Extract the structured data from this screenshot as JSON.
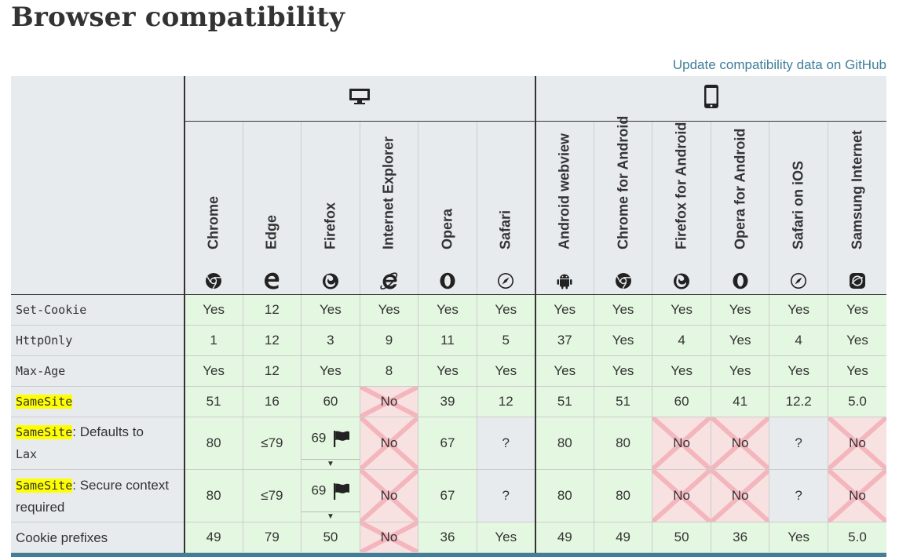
{
  "page": {
    "title": "Browser compatibility",
    "github_link": "Update compatibility data on GitHub"
  },
  "platforms": {
    "desktop_icon": "desktop-icon",
    "mobile_icon": "mobile-icon"
  },
  "browsers": [
    {
      "name": "Chrome",
      "icon": "chrome-icon"
    },
    {
      "name": "Edge",
      "icon": "edge-icon"
    },
    {
      "name": "Firefox",
      "icon": "firefox-icon"
    },
    {
      "name": "Internet Explorer",
      "icon": "ie-icon"
    },
    {
      "name": "Opera",
      "icon": "opera-icon"
    },
    {
      "name": "Safari",
      "icon": "safari-icon"
    },
    {
      "name": "Android webview",
      "icon": "android-icon"
    },
    {
      "name": "Chrome for Android",
      "icon": "chrome-icon"
    },
    {
      "name": "Firefox for Android",
      "icon": "firefox-icon"
    },
    {
      "name": "Opera for Android",
      "icon": "opera-icon"
    },
    {
      "name": "Safari on iOS",
      "icon": "safari-icon"
    },
    {
      "name": "Samsung Internet",
      "icon": "samsung-icon"
    }
  ],
  "rows": [
    {
      "label_code": "Set-Cookie",
      "label_hl": false,
      "label_text": "",
      "label_code2": "",
      "tall": false,
      "cells": [
        {
          "v": "Yes",
          "s": "yes"
        },
        {
          "v": "12",
          "s": "yes"
        },
        {
          "v": "Yes",
          "s": "yes"
        },
        {
          "v": "Yes",
          "s": "yes"
        },
        {
          "v": "Yes",
          "s": "yes"
        },
        {
          "v": "Yes",
          "s": "yes"
        },
        {
          "v": "Yes",
          "s": "yes"
        },
        {
          "v": "Yes",
          "s": "yes"
        },
        {
          "v": "Yes",
          "s": "yes"
        },
        {
          "v": "Yes",
          "s": "yes"
        },
        {
          "v": "Yes",
          "s": "yes"
        },
        {
          "v": "Yes",
          "s": "yes"
        }
      ]
    },
    {
      "label_code": "HttpOnly",
      "label_hl": false,
      "label_text": "",
      "label_code2": "",
      "tall": false,
      "cells": [
        {
          "v": "1",
          "s": "yes"
        },
        {
          "v": "12",
          "s": "yes"
        },
        {
          "v": "3",
          "s": "yes"
        },
        {
          "v": "9",
          "s": "yes"
        },
        {
          "v": "11",
          "s": "yes"
        },
        {
          "v": "5",
          "s": "yes"
        },
        {
          "v": "37",
          "s": "yes"
        },
        {
          "v": "Yes",
          "s": "yes"
        },
        {
          "v": "4",
          "s": "yes"
        },
        {
          "v": "Yes",
          "s": "yes"
        },
        {
          "v": "4",
          "s": "yes"
        },
        {
          "v": "Yes",
          "s": "yes"
        }
      ]
    },
    {
      "label_code": "Max-Age",
      "label_hl": false,
      "label_text": "",
      "label_code2": "",
      "tall": false,
      "cells": [
        {
          "v": "Yes",
          "s": "yes"
        },
        {
          "v": "12",
          "s": "yes"
        },
        {
          "v": "Yes",
          "s": "yes"
        },
        {
          "v": "8",
          "s": "yes"
        },
        {
          "v": "Yes",
          "s": "yes"
        },
        {
          "v": "Yes",
          "s": "yes"
        },
        {
          "v": "Yes",
          "s": "yes"
        },
        {
          "v": "Yes",
          "s": "yes"
        },
        {
          "v": "Yes",
          "s": "yes"
        },
        {
          "v": "Yes",
          "s": "yes"
        },
        {
          "v": "Yes",
          "s": "yes"
        },
        {
          "v": "Yes",
          "s": "yes"
        }
      ]
    },
    {
      "label_code": "SameSite",
      "label_hl": true,
      "label_text": "",
      "label_code2": "",
      "tall": false,
      "cells": [
        {
          "v": "51",
          "s": "yes"
        },
        {
          "v": "16",
          "s": "yes"
        },
        {
          "v": "60",
          "s": "yes"
        },
        {
          "v": "No",
          "s": "no"
        },
        {
          "v": "39",
          "s": "yes"
        },
        {
          "v": "12",
          "s": "yes"
        },
        {
          "v": "51",
          "s": "yes"
        },
        {
          "v": "51",
          "s": "yes"
        },
        {
          "v": "60",
          "s": "yes"
        },
        {
          "v": "41",
          "s": "yes"
        },
        {
          "v": "12.2",
          "s": "yes"
        },
        {
          "v": "5.0",
          "s": "yes"
        }
      ]
    },
    {
      "label_code": "SameSite",
      "label_hl": true,
      "label_text": ": Defaults to",
      "label_code2": "Lax",
      "tall": true,
      "cells": [
        {
          "v": "80",
          "s": "yes"
        },
        {
          "v": "≤79",
          "s": "yes"
        },
        {
          "v": "69",
          "s": "yes",
          "flag": true
        },
        {
          "v": "No",
          "s": "no"
        },
        {
          "v": "67",
          "s": "yes"
        },
        {
          "v": "?",
          "s": "unk"
        },
        {
          "v": "80",
          "s": "yes"
        },
        {
          "v": "80",
          "s": "yes"
        },
        {
          "v": "No",
          "s": "no"
        },
        {
          "v": "No",
          "s": "no"
        },
        {
          "v": "?",
          "s": "unk"
        },
        {
          "v": "No",
          "s": "no"
        }
      ]
    },
    {
      "label_code": "SameSite",
      "label_hl": true,
      "label_text": ": Secure context required",
      "label_code2": "",
      "tall": true,
      "cells": [
        {
          "v": "80",
          "s": "yes"
        },
        {
          "v": "≤79",
          "s": "yes"
        },
        {
          "v": "69",
          "s": "yes",
          "flag": true
        },
        {
          "v": "No",
          "s": "no"
        },
        {
          "v": "67",
          "s": "yes"
        },
        {
          "v": "?",
          "s": "unk"
        },
        {
          "v": "80",
          "s": "yes"
        },
        {
          "v": "80",
          "s": "yes"
        },
        {
          "v": "No",
          "s": "no"
        },
        {
          "v": "No",
          "s": "no"
        },
        {
          "v": "?",
          "s": "unk"
        },
        {
          "v": "No",
          "s": "no"
        }
      ]
    },
    {
      "label_code": "",
      "label_hl": false,
      "label_text": "Cookie prefixes",
      "label_code2": "",
      "tall": false,
      "cells": [
        {
          "v": "49",
          "s": "yes"
        },
        {
          "v": "79",
          "s": "yes"
        },
        {
          "v": "50",
          "s": "yes"
        },
        {
          "v": "No",
          "s": "no"
        },
        {
          "v": "36",
          "s": "yes"
        },
        {
          "v": "Yes",
          "s": "yes"
        },
        {
          "v": "49",
          "s": "yes"
        },
        {
          "v": "49",
          "s": "yes"
        },
        {
          "v": "50",
          "s": "yes"
        },
        {
          "v": "36",
          "s": "yes"
        },
        {
          "v": "Yes",
          "s": "yes"
        },
        {
          "v": "5.0",
          "s": "yes"
        }
      ]
    }
  ],
  "colors": {
    "yes": "#e4f8e1",
    "no": "#f8e1e1",
    "unknown": "#e8ebee",
    "highlight": "#ffff00",
    "link": "#3f7f99"
  }
}
